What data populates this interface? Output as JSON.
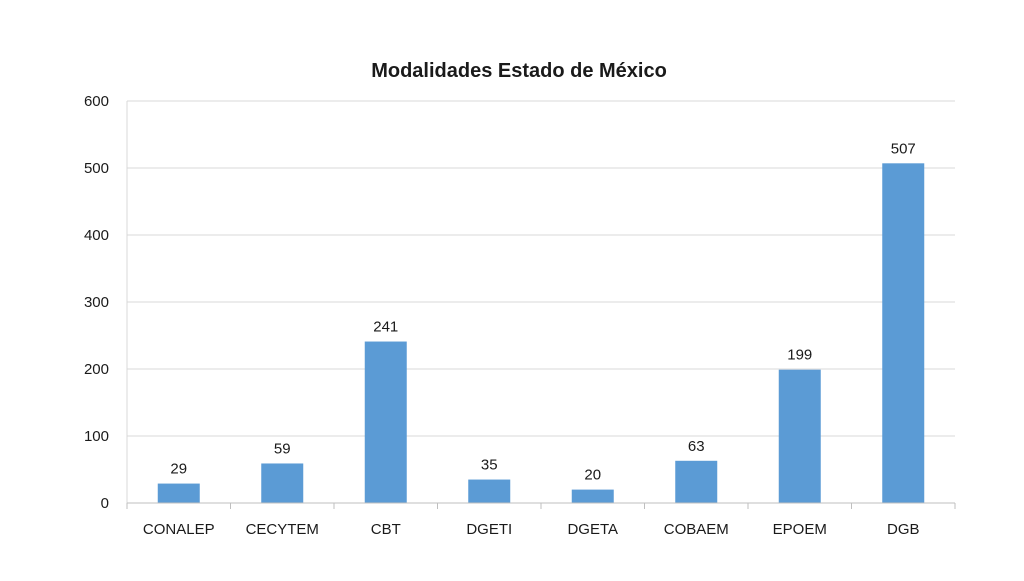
{
  "chart_data": {
    "type": "bar",
    "title": "Modalidades Estado de México",
    "xlabel": "",
    "ylabel": "",
    "categories": [
      "CONALEP",
      "CECYTEM",
      "CBT",
      "DGETI",
      "DGETA",
      "COBAEM",
      "EPOEM",
      "DGB"
    ],
    "values": [
      29,
      59,
      241,
      35,
      20,
      63,
      199,
      507
    ],
    "data_labels": [
      "29",
      "59",
      "241",
      "35",
      "20",
      "63",
      "199",
      "507"
    ],
    "ylim": [
      0,
      600
    ],
    "yticks": [
      0,
      100,
      200,
      300,
      400,
      500,
      600
    ],
    "grid": true,
    "legend": "none",
    "bar_color": "#5b9bd5",
    "grid_color": "#d9d9d9"
  }
}
